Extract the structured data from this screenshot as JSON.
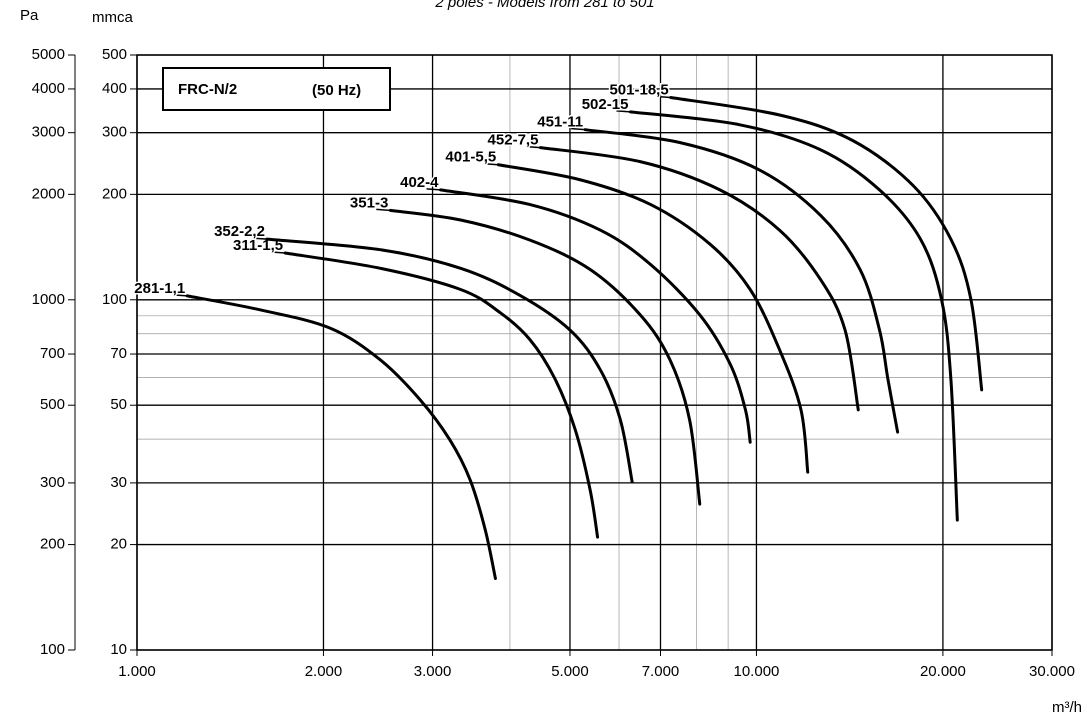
{
  "chart_data": {
    "type": "line",
    "title": "2 poles - Models from 281 to 501",
    "annotation": {
      "model": "FRC-N/2",
      "frequency": "(50 Hz)"
    },
    "xlabel": "m³/h",
    "ylabel": "mmca",
    "y2label": "Pa",
    "log_x": true,
    "log_y": true,
    "grid": true,
    "minor_grid": true,
    "xlim": [
      1000,
      30000
    ],
    "xticks": [
      {
        "value": 1000,
        "label": "1.000"
      },
      {
        "value": 2000,
        "label": "2.000"
      },
      {
        "value": 3000,
        "label": "3.000"
      },
      {
        "value": 5000,
        "label": "5.000"
      },
      {
        "value": 7000,
        "label": "7.000"
      },
      {
        "value": 10000,
        "label": "10.000"
      },
      {
        "value": 20000,
        "label": "20.000"
      },
      {
        "value": 30000,
        "label": "30.000"
      }
    ],
    "ylim": [
      10,
      500
    ],
    "yticks": [
      10,
      20,
      30,
      50,
      70,
      100,
      200,
      300,
      400,
      500
    ],
    "y2lim": [
      100,
      5000
    ],
    "y2ticks": [
      100,
      200,
      300,
      500,
      700,
      1000,
      2000,
      3000,
      4000,
      5000
    ],
    "series": [
      {
        "name": "281-1,1",
        "color": "#000000",
        "x": [
          1205,
          1580,
          2050,
          2470,
          2865,
          3200,
          3450,
          3650,
          3790
        ],
        "values": [
          102.6,
          93.6,
          83,
          67.4,
          51.8,
          39.8,
          30.6,
          22,
          16
        ]
      },
      {
        "name": "311-1,5",
        "color": "#000000",
        "x": [
          1734,
          2470,
          3330,
          3860,
          4310,
          4730,
          5100,
          5390,
          5540
        ],
        "values": [
          136,
          123,
          107,
          91.8,
          76.9,
          59.4,
          42.5,
          28.6,
          21
        ]
      },
      {
        "name": "352-2,2",
        "color": "#000000",
        "x": [
          1621,
          2470,
          3330,
          4150,
          5000,
          5600,
          6030,
          6300
        ],
        "values": [
          149,
          139,
          123,
          103,
          82,
          63,
          45.4,
          30.2
        ]
      },
      {
        "name": "351-3",
        "color": "#000000",
        "x": [
          2564,
          3330,
          4310,
          5390,
          6490,
          7250,
          7800,
          8100
        ],
        "values": [
          180,
          169,
          148,
          122,
          90.6,
          67.4,
          45.4,
          26.1
        ]
      },
      {
        "name": "402-4",
        "color": "#000000",
        "x": [
          3090,
          4310,
          5600,
          6750,
          8100,
          9070,
          9600,
          9770
        ],
        "values": [
          206,
          187,
          158,
          126,
          90.6,
          65.5,
          48.5,
          39.2
        ]
      },
      {
        "name": "401-5,5",
        "color": "#000000",
        "x": [
          3830,
          5200,
          6750,
          8420,
          9770,
          10900,
          11800,
          12100
        ],
        "values": [
          243,
          220,
          187,
          144,
          107,
          71.9,
          48.5,
          32.2
        ]
      },
      {
        "name": "452-7,5",
        "color": "#000000",
        "x": [
          4480,
          6490,
          8730,
          10900,
          12700,
          13900,
          14600
        ],
        "values": [
          272,
          248,
          206,
          158,
          114,
          82,
          48.5
        ]
      },
      {
        "name": "451-11",
        "color": "#000000",
        "x": [
          5290,
          7530,
          10100,
          12700,
          14700,
          15800,
          16300,
          16900
        ],
        "values": [
          306,
          281,
          235,
          174,
          122,
          82,
          59.4,
          41.9
        ]
      },
      {
        "name": "502-15",
        "color": "#000000",
        "x": [
          6260,
          9400,
          12700,
          15800,
          18400,
          19900,
          20600,
          21100
        ],
        "values": [
          344,
          316,
          268,
          206,
          149,
          100,
          59.4,
          23.5
        ]
      },
      {
        "name": "501-18,5",
        "color": "#000000",
        "x": [
          7270,
          10900,
          14300,
          17900,
          20600,
          22200,
          23100
        ],
        "values": [
          378,
          337,
          285,
          212,
          149,
          100,
          55.3
        ]
      }
    ]
  }
}
